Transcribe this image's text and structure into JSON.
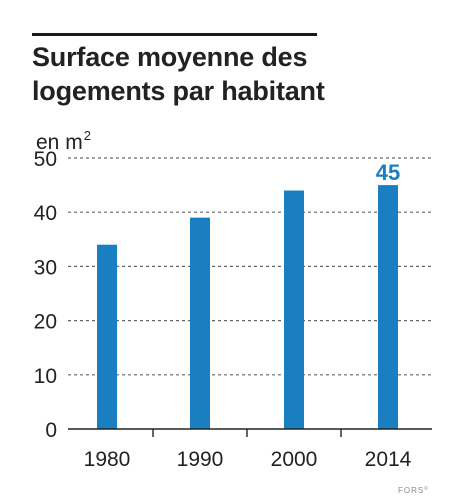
{
  "chart_data": {
    "type": "bar",
    "title": "Surface moyenne des logements par habitant",
    "unit_prefix": "en m",
    "unit_superscript": "2",
    "categories": [
      "1980",
      "1990",
      "2000",
      "2014"
    ],
    "values": [
      34,
      39,
      44,
      45
    ],
    "highlight_label": "45",
    "highlight_index": 3,
    "ylim": [
      0,
      50
    ],
    "yticks": [
      "0",
      "10",
      "20",
      "30",
      "40",
      "50"
    ],
    "grid": true,
    "xlabel": "",
    "ylabel": "",
    "bar_color": "#1a7fc1",
    "highlight_color": "#1a7fc1"
  },
  "credit": {
    "text": "FORS",
    "mark": "©"
  }
}
